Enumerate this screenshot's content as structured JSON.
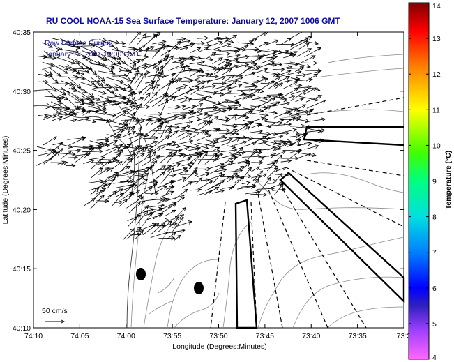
{
  "title": "RU COOL  NOAA-15  Sea Surface Temperature:  January 12, 2007 1006 GMT",
  "legend": {
    "line1": "Raw Surface Current",
    "line2": "January 12, 2007 10:00 GMT",
    "scale_label": "50 cm/s"
  },
  "axes": {
    "xlabel": "Longitude (Degrees:Minutes)",
    "ylabel": "Latitude (Degrees:Minutes)",
    "x_ticks": [
      "74:10",
      "74:05",
      "74:00",
      "73:55",
      "73:50",
      "73:45",
      "73:40",
      "73:35",
      "73:3"
    ],
    "y_ticks": [
      "40:35",
      "40:30",
      "40:25",
      "40:20",
      "40:15",
      "40:10"
    ]
  },
  "colorbar": {
    "label": "Temperature (°C)",
    "ticks": [
      "14",
      "13",
      "12",
      "11",
      "10",
      "9",
      "8",
      "7",
      "6",
      "5",
      "4"
    ],
    "min": 4,
    "max": 14
  }
}
